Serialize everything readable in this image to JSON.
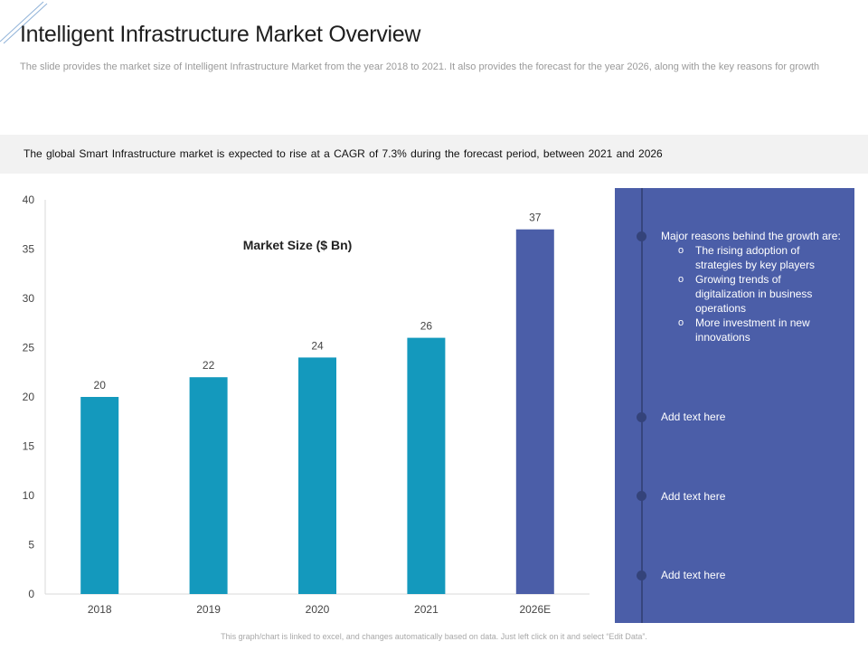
{
  "page": {
    "title": "Intelligent Infrastructure Market Overview",
    "subtitle": "The slide provides the market size of Intelligent Infrastructure Market from the year 2018 to 2021. It also provides the forecast for the year 2026, along with the key reasons for growth",
    "banner": "The global Smart Infrastructure  market is expected to rise at a CAGR of 7.3% during the forecast period,  between 2021 and 2026",
    "footer": "This graph/chart is linked to excel, and changes automatically based on data. Just left click on it and select “Edit Data”."
  },
  "chart_data": {
    "type": "bar",
    "title": "Market Size ($ Bn)",
    "categories": [
      "2018",
      "2019",
      "2020",
      "2021",
      "2026E"
    ],
    "values": [
      20,
      22,
      24,
      26,
      37
    ],
    "ylim": [
      0,
      40
    ],
    "yticks": [
      0,
      5,
      10,
      15,
      20,
      25,
      30,
      35,
      40
    ],
    "xlabel": "",
    "ylabel": "",
    "grid": false,
    "colors": [
      "#1499bd",
      "#1499bd",
      "#1499bd",
      "#1499bd",
      "#4b5ea8"
    ]
  },
  "panel": {
    "reasons_heading": "Major reasons behind the growth are:",
    "reasons": [
      "The rising adoption of strategies by key players",
      "Growing trends of digitalization in business operations",
      "More investment in new innovations"
    ],
    "placeholders": [
      "Add text here",
      "Add text here",
      "Add text here"
    ],
    "colors": {
      "background": "#4b5ea8",
      "bullet": "#34437a",
      "text": "#ffffff"
    }
  }
}
